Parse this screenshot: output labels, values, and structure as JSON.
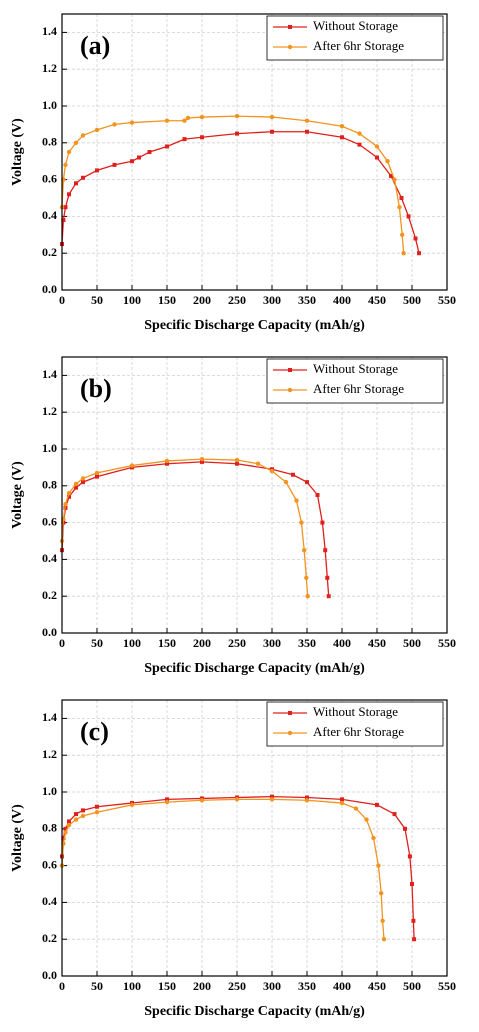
{
  "chart_data": [
    {
      "type": "line",
      "annotation": "(a)",
      "xlabel": "Specific Discharge Capacity (mAh/g)",
      "ylabel": "Voltage (V)",
      "xlim": [
        0,
        550
      ],
      "xticks": [
        0,
        50,
        100,
        150,
        200,
        250,
        300,
        350,
        400,
        450,
        500,
        550
      ],
      "ylim": [
        0,
        1.5
      ],
      "yticks": [
        {
          "value": 0,
          "label": "0.0"
        },
        0.2,
        0.4,
        0.6,
        0.8,
        {
          "value": 1,
          "label": "1.0"
        },
        1.2,
        1.4
      ],
      "grid": true,
      "legend": "upper right",
      "series": [
        {
          "name": "Without Storage",
          "color": "#e0201c",
          "marker": "square",
          "x": [
            0,
            2,
            5,
            10,
            20,
            30,
            50,
            75,
            100,
            110,
            125,
            150,
            175,
            200,
            250,
            300,
            350,
            400,
            425,
            450,
            470,
            485,
            495,
            505,
            510
          ],
          "values": [
            0.25,
            0.38,
            0.45,
            0.52,
            0.58,
            0.61,
            0.65,
            0.68,
            0.7,
            0.72,
            0.75,
            0.78,
            0.82,
            0.83,
            0.85,
            0.86,
            0.86,
            0.83,
            0.79,
            0.72,
            0.62,
            0.5,
            0.4,
            0.28,
            0.2
          ]
        },
        {
          "name": "After 6hr Storage",
          "color": "#f39320",
          "marker": "circle",
          "x": [
            0,
            2,
            5,
            10,
            20,
            30,
            50,
            75,
            100,
            150,
            175,
            180,
            200,
            250,
            300,
            350,
            400,
            425,
            450,
            465,
            475,
            482,
            486,
            488
          ],
          "values": [
            0.45,
            0.6,
            0.68,
            0.75,
            0.8,
            0.84,
            0.87,
            0.9,
            0.91,
            0.92,
            0.92,
            0.935,
            0.94,
            0.945,
            0.94,
            0.92,
            0.89,
            0.85,
            0.78,
            0.7,
            0.6,
            0.45,
            0.3,
            0.2
          ]
        }
      ]
    },
    {
      "type": "line",
      "annotation": "(b)",
      "xlabel": "Specific Discharge Capacity (mAh/g)",
      "ylabel": "Voltage (V)",
      "xlim": [
        0,
        550
      ],
      "xticks": [
        0,
        50,
        100,
        150,
        200,
        250,
        300,
        350,
        400,
        450,
        500,
        550
      ],
      "ylim": [
        0,
        1.5
      ],
      "yticks": [
        {
          "value": 0,
          "label": "0.0"
        },
        0.2,
        0.4,
        0.6,
        0.8,
        {
          "value": 1,
          "label": "1.0"
        },
        1.2,
        1.4
      ],
      "grid": true,
      "legend": "upper right",
      "series": [
        {
          "name": "Without Storage",
          "color": "#e0201c",
          "marker": "square",
          "x": [
            0,
            2,
            5,
            10,
            20,
            30,
            50,
            100,
            150,
            200,
            250,
            300,
            330,
            350,
            365,
            372,
            376,
            379,
            381
          ],
          "values": [
            0.45,
            0.6,
            0.68,
            0.74,
            0.79,
            0.82,
            0.85,
            0.9,
            0.92,
            0.93,
            0.92,
            0.89,
            0.86,
            0.82,
            0.75,
            0.6,
            0.45,
            0.3,
            0.2
          ]
        },
        {
          "name": "After 6hr Storage",
          "color": "#f39320",
          "marker": "circle",
          "x": [
            0,
            2,
            5,
            10,
            20,
            30,
            50,
            100,
            150,
            200,
            250,
            280,
            300,
            320,
            335,
            342,
            346,
            349,
            351
          ],
          "values": [
            0.5,
            0.62,
            0.7,
            0.76,
            0.81,
            0.84,
            0.87,
            0.91,
            0.935,
            0.945,
            0.94,
            0.92,
            0.88,
            0.82,
            0.72,
            0.6,
            0.45,
            0.3,
            0.2
          ]
        }
      ]
    },
    {
      "type": "line",
      "annotation": "(c)",
      "xlabel": "Specific Discharge Capacity (mAh/g)",
      "ylabel": "Voltage (V)",
      "xlim": [
        0,
        550
      ],
      "xticks": [
        0,
        50,
        100,
        150,
        200,
        250,
        300,
        350,
        400,
        450,
        500,
        550
      ],
      "ylim": [
        0,
        1.5
      ],
      "yticks": [
        {
          "value": 0,
          "label": "0.0"
        },
        0.2,
        0.4,
        0.6,
        0.8,
        {
          "value": 1,
          "label": "1.0"
        },
        1.2,
        1.4
      ],
      "grid": true,
      "legend": "upper right",
      "series": [
        {
          "name": "Without Storage",
          "color": "#e0201c",
          "marker": "square",
          "x": [
            0,
            2,
            5,
            10,
            20,
            30,
            50,
            100,
            150,
            200,
            250,
            300,
            350,
            400,
            450,
            475,
            490,
            497,
            500,
            502,
            503
          ],
          "values": [
            0.65,
            0.75,
            0.8,
            0.84,
            0.88,
            0.9,
            0.92,
            0.94,
            0.96,
            0.965,
            0.97,
            0.975,
            0.97,
            0.96,
            0.93,
            0.88,
            0.8,
            0.65,
            0.5,
            0.3,
            0.2
          ]
        },
        {
          "name": "After 6hr Storage",
          "color": "#f39320",
          "marker": "circle",
          "x": [
            0,
            2,
            5,
            10,
            20,
            30,
            50,
            100,
            150,
            200,
            250,
            300,
            350,
            400,
            420,
            435,
            445,
            452,
            456,
            458,
            460
          ],
          "values": [
            0.6,
            0.72,
            0.78,
            0.82,
            0.85,
            0.87,
            0.89,
            0.93,
            0.945,
            0.955,
            0.96,
            0.96,
            0.955,
            0.94,
            0.91,
            0.85,
            0.75,
            0.6,
            0.45,
            0.3,
            0.2
          ]
        }
      ]
    }
  ]
}
